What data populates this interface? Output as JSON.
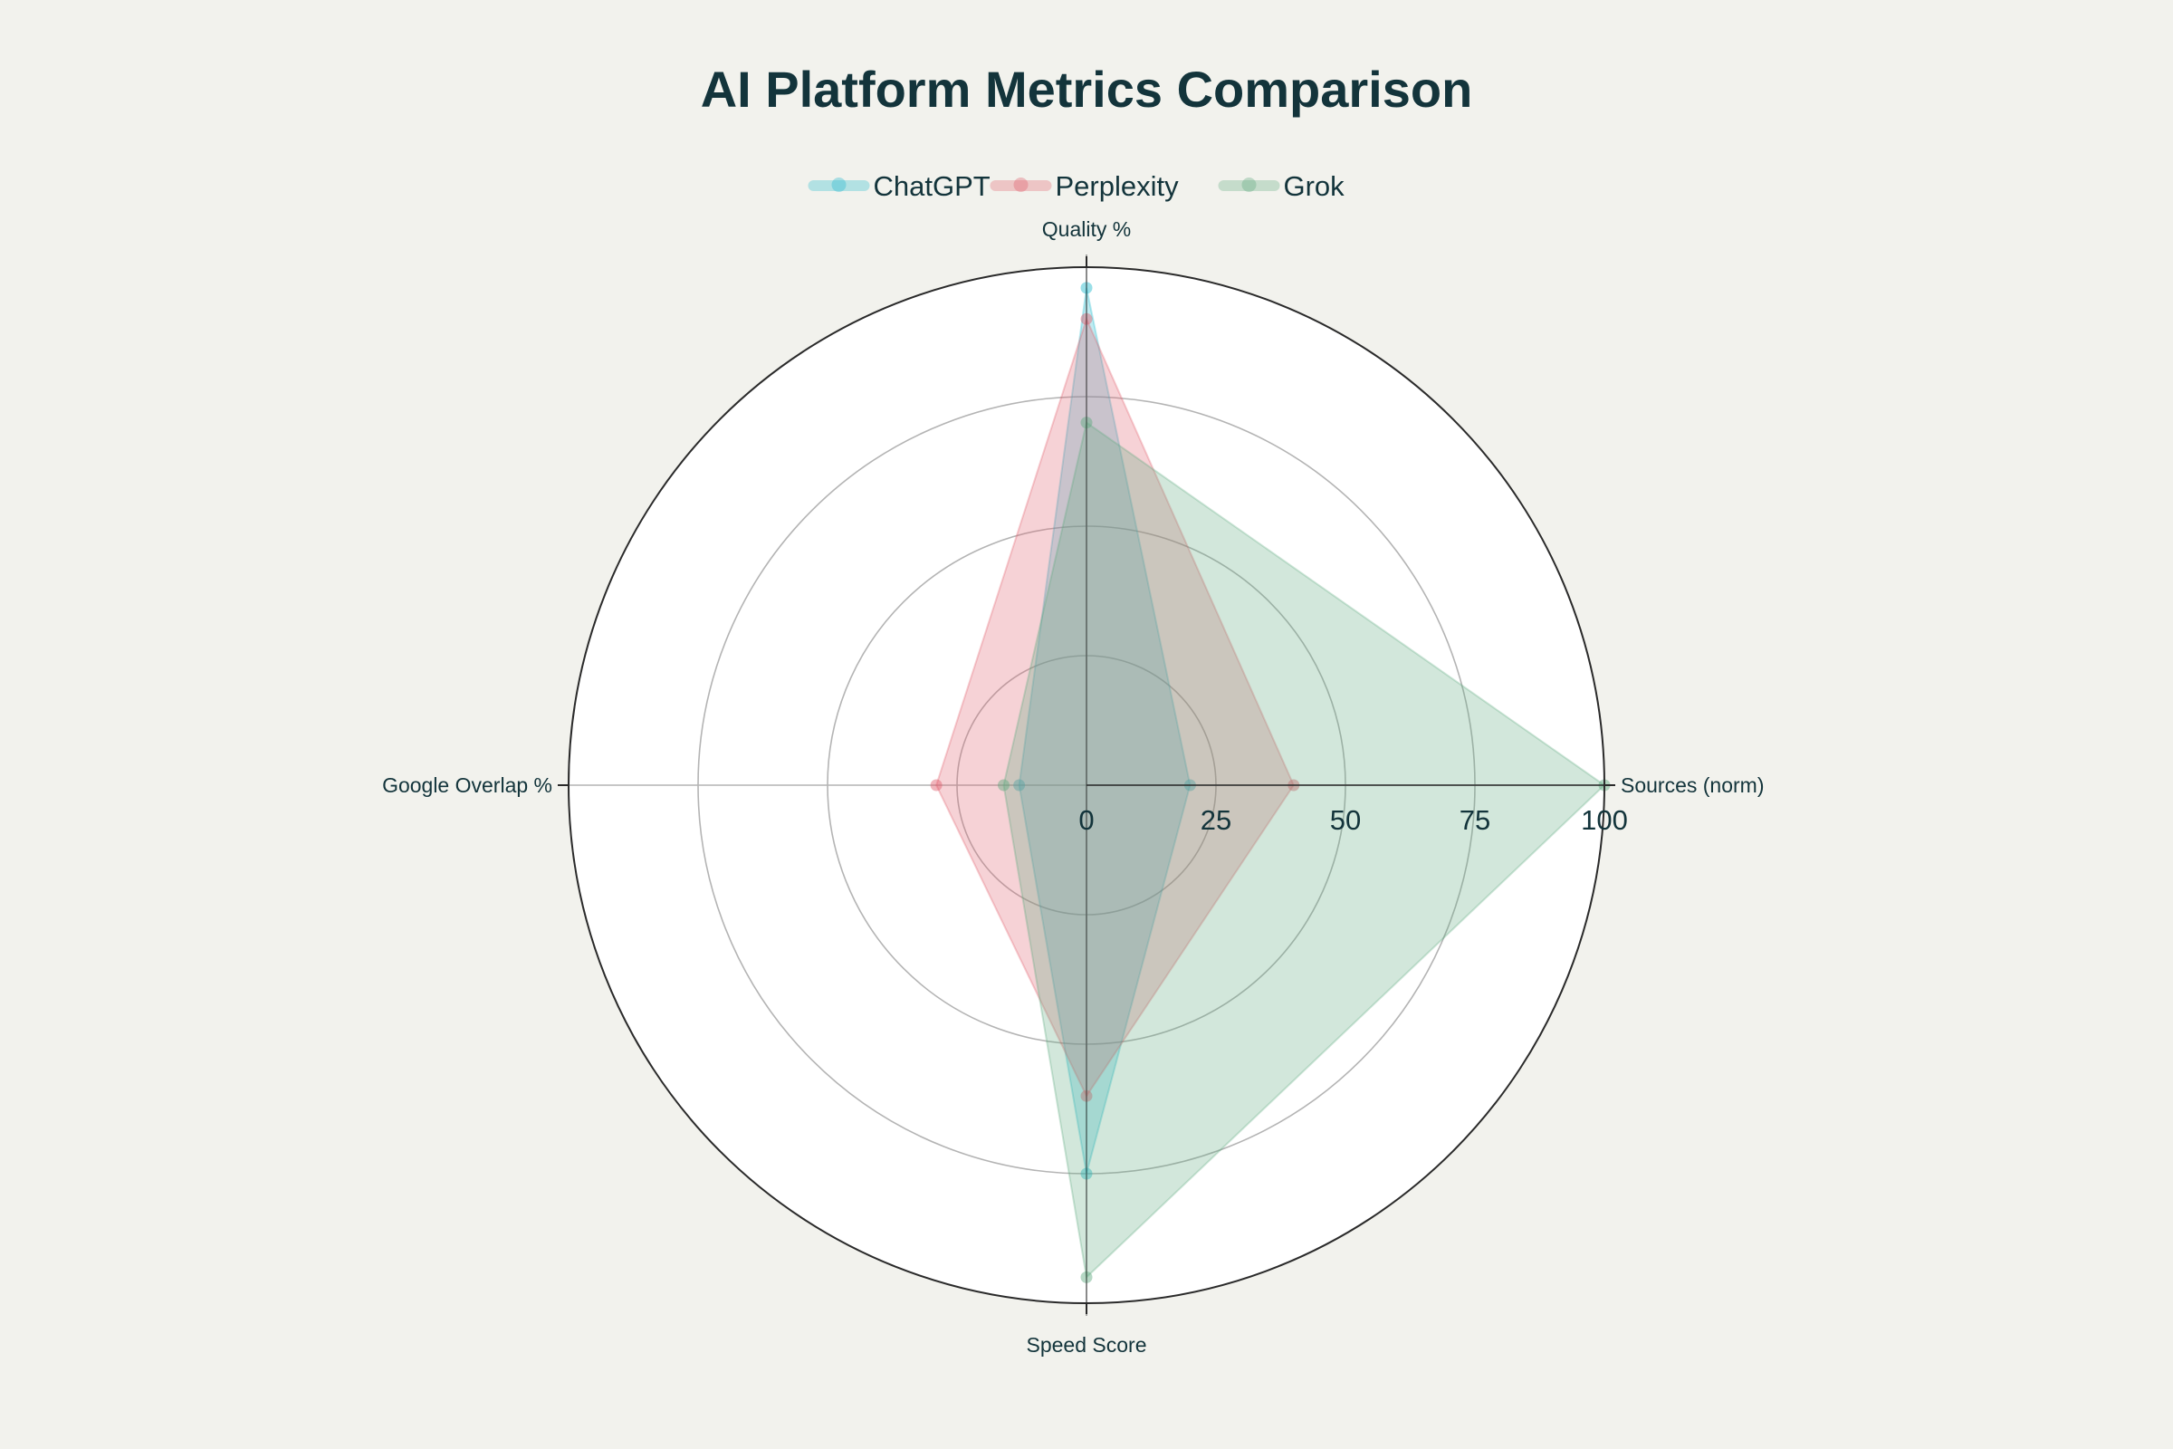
{
  "chart_data": {
    "type": "radar",
    "title": "AI Platform Metrics Comparison",
    "axes": [
      "Quality %",
      "Sources (norm)",
      "Speed Score",
      "Google Overlap %"
    ],
    "radial_range": [
      0,
      100
    ],
    "radial_ticks": [
      "0",
      "25",
      "50",
      "75",
      "100"
    ],
    "legend_position": "top",
    "series": [
      {
        "name": "ChatGPT",
        "color": "#1fb8cd",
        "values": [
          96,
          20,
          75,
          13
        ]
      },
      {
        "name": "Perplexity",
        "color": "#e05c6a",
        "values": [
          90,
          40,
          60,
          29
        ]
      },
      {
        "name": "Grok",
        "color": "#5ea97e",
        "values": [
          70,
          100,
          95,
          16
        ]
      }
    ]
  }
}
